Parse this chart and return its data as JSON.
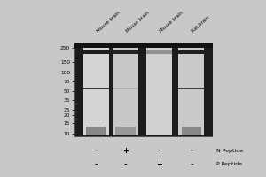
{
  "fig_width": 3.0,
  "fig_height": 2.0,
  "dpi": 100,
  "bg_color": "#c8c8c8",
  "gel_color": "#1c1c1c",
  "lane_color_light": "#dcdcdc",
  "lane_color_mid": "#b8b8b8",
  "band_dark": "#2a2a2a",
  "band_mid": "#666666",
  "mw_labels": [
    "250",
    "150",
    "100",
    "70",
    "50",
    "35",
    "25",
    "20",
    "15",
    "10"
  ],
  "mw_kda": [
    250,
    150,
    100,
    70,
    50,
    35,
    25,
    20,
    15,
    10
  ],
  "sample_labels": [
    "Mouse brain",
    "Mouse brain",
    "Mouse brain",
    "Rat brain"
  ],
  "symbols_n": [
    "-",
    "+",
    "-",
    "-"
  ],
  "symbols_p": [
    "-",
    "-",
    "+",
    "-"
  ],
  "label_n": "N Peptide",
  "label_p": "P Peptide"
}
